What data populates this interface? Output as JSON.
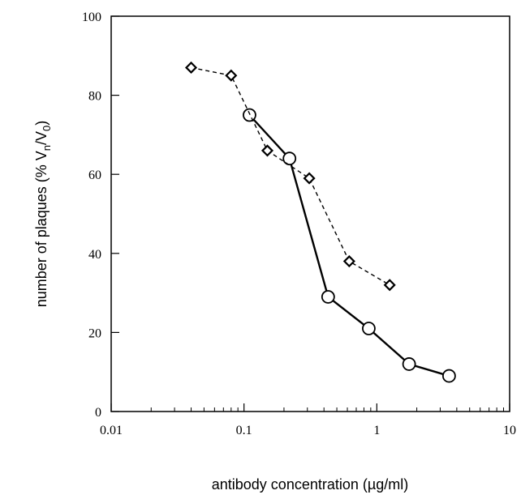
{
  "chart_data": {
    "type": "line",
    "title": "",
    "xlabel": "antibody concentration (µg/ml)",
    "ylabel_parts": {
      "pre": "number of plaques (% V",
      "sub1": "n",
      "mid": "/V",
      "sub2": "0",
      "post": ")"
    },
    "x_scale": "log",
    "xlim": [
      0.01,
      10
    ],
    "ylim": [
      0,
      100
    ],
    "x_ticks": [
      0.01,
      0.1,
      1,
      10
    ],
    "x_tick_labels": [
      "0.01",
      "0.1",
      "1",
      "10"
    ],
    "y_ticks": [
      0,
      20,
      40,
      60,
      80,
      100
    ],
    "y_tick_labels": [
      "0",
      "20",
      "40",
      "60",
      "80",
      "100"
    ],
    "grid": false,
    "legend": "none",
    "series": [
      {
        "marker": "circle",
        "line_style": "solid",
        "x": [
          0.11,
          0.22,
          0.43,
          0.87,
          1.75,
          3.5
        ],
        "y": [
          75,
          64,
          29,
          21,
          12,
          9
        ]
      },
      {
        "marker": "diamond",
        "line_style": "dashed",
        "x": [
          0.04,
          0.08,
          0.15,
          0.31,
          0.62,
          1.25
        ],
        "y": [
          87,
          85,
          66,
          59,
          38,
          32
        ]
      }
    ]
  }
}
